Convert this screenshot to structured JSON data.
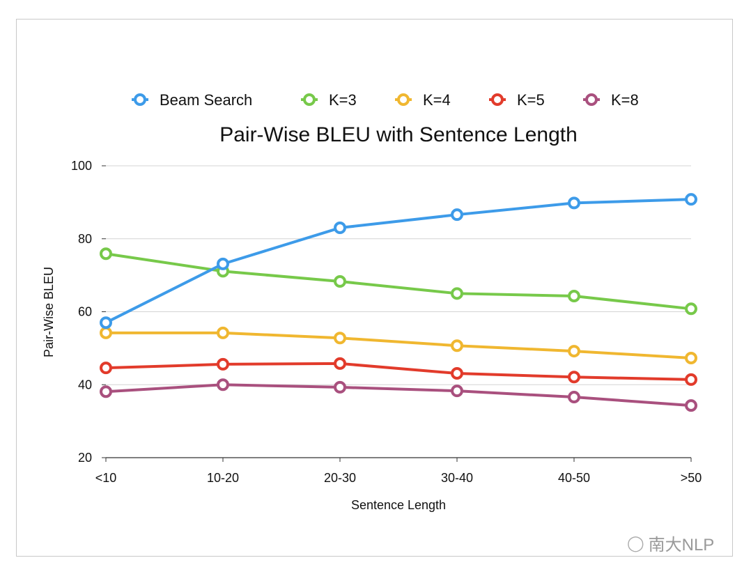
{
  "chart_data": {
    "type": "line",
    "title": "Pair-Wise BLEU with Sentence Length",
    "xlabel": "Sentence Length",
    "ylabel": "Pair-Wise BLEU",
    "categories": [
      "<10",
      "10-20",
      "20-30",
      "30-40",
      "40-50",
      ">50"
    ],
    "ylim": [
      20,
      100
    ],
    "yticks": [
      20,
      40,
      60,
      80,
      100
    ],
    "grid": true,
    "legend_position": "top",
    "series": [
      {
        "name": "Beam Search",
        "color": "#3d9be9",
        "values": [
          57.0,
          73.1,
          83.0,
          86.6,
          89.8,
          90.8
        ]
      },
      {
        "name": "K=3",
        "color": "#77c94a",
        "values": [
          75.9,
          71.1,
          68.3,
          65.0,
          64.3,
          60.8
        ]
      },
      {
        "name": "K=4",
        "color": "#f0b730",
        "values": [
          54.2,
          54.2,
          52.8,
          50.7,
          49.2,
          47.3
        ]
      },
      {
        "name": "K=5",
        "color": "#e23b2b",
        "values": [
          44.6,
          45.6,
          45.8,
          43.1,
          42.1,
          41.4
        ]
      },
      {
        "name": "K=8",
        "color": "#a9507e",
        "values": [
          38.1,
          40.0,
          39.3,
          38.3,
          36.6,
          34.3
        ]
      }
    ]
  },
  "watermark": "南大NLP"
}
